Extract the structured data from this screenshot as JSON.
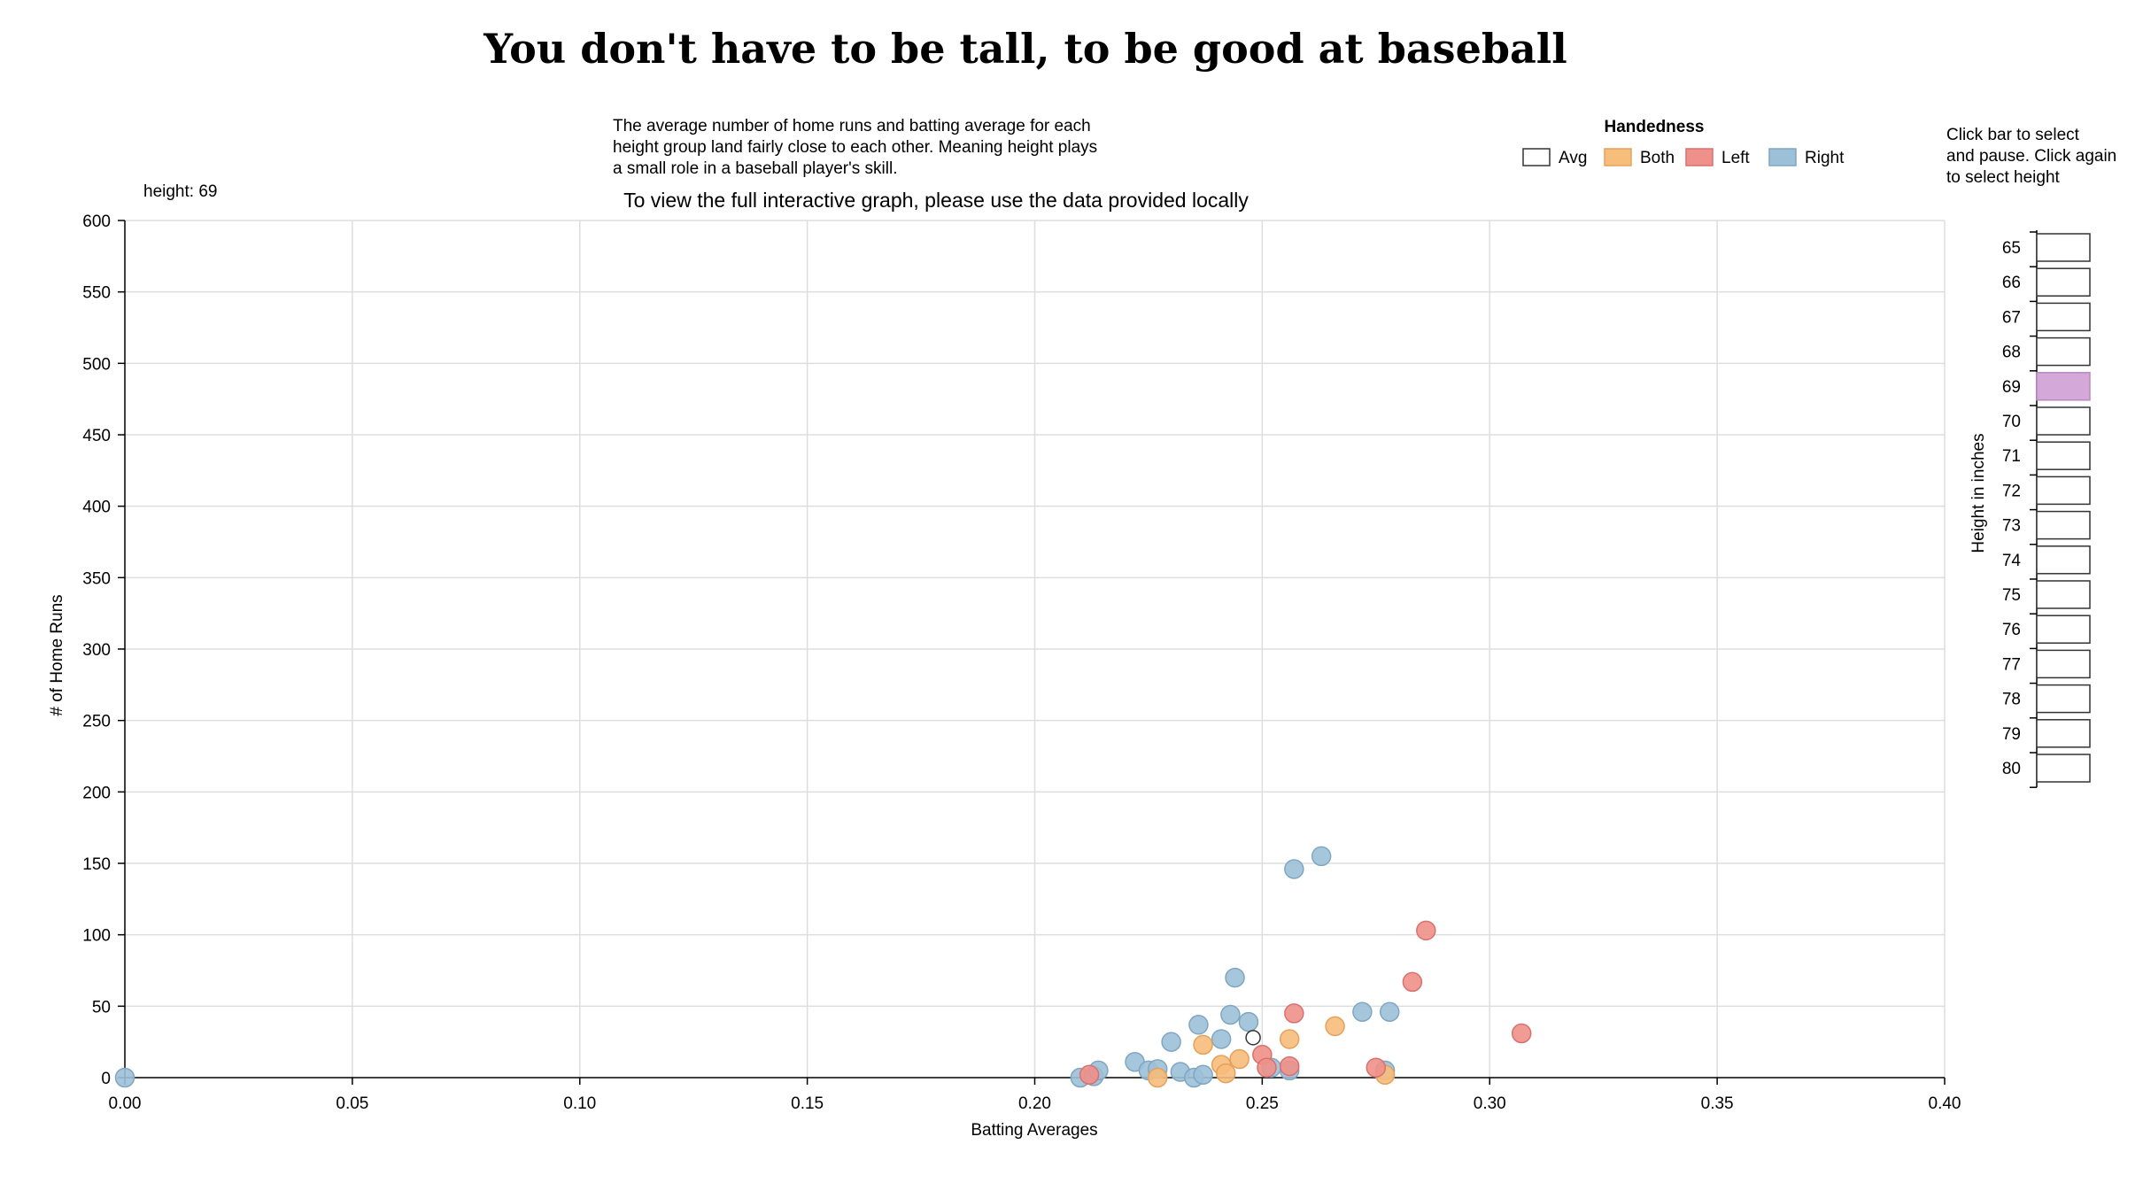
{
  "title": "You don't have to be tall, to be good at baseball",
  "description_lines": [
    "The average number of home runs and batting average for each",
    "height group land fairly close to each other. Meaning height plays",
    "a small role in a baseball player's skill."
  ],
  "notice": "To view the full interactive graph, please use the data provided locally",
  "height_readout": "height: 69",
  "instructions_lines": [
    "Click bar to select",
    "and pause. Click again",
    "to select height"
  ],
  "legend": {
    "title": "Handedness",
    "items": [
      {
        "label": "Avg",
        "color": "#ffffff",
        "stroke": "#333333"
      },
      {
        "label": "Both",
        "color": "#f7bd7b",
        "stroke": "#e5a05a"
      },
      {
        "label": "Left",
        "color": "#f0908a",
        "stroke": "#d97070"
      },
      {
        "label": "Right",
        "color": "#9cc0d8",
        "stroke": "#7fa6c2"
      }
    ]
  },
  "height_selector": {
    "axis_label": "Height in inches",
    "heights": [
      65,
      66,
      67,
      68,
      69,
      70,
      71,
      72,
      73,
      74,
      75,
      76,
      77,
      78,
      79,
      80
    ],
    "selected": 69,
    "selected_color": "#d4a8d8"
  },
  "chart_data": {
    "type": "scatter",
    "xlabel": "Batting Averages",
    "ylabel": "# of Home Runs",
    "xlim": [
      0,
      0.4
    ],
    "ylim": [
      0,
      600
    ],
    "xticks": [
      "0.00",
      "0.05",
      "0.10",
      "0.15",
      "0.20",
      "0.25",
      "0.30",
      "0.35",
      "0.40"
    ],
    "yticks": [
      "0",
      "50",
      "100",
      "150",
      "200",
      "250",
      "300",
      "350",
      "400",
      "450",
      "500",
      "550",
      "600"
    ],
    "grid": true,
    "series": [
      {
        "name": "Right",
        "points": [
          [
            0.0,
            0
          ],
          [
            0.21,
            0
          ],
          [
            0.213,
            1
          ],
          [
            0.214,
            5
          ],
          [
            0.222,
            11
          ],
          [
            0.225,
            5
          ],
          [
            0.227,
            6
          ],
          [
            0.23,
            25
          ],
          [
            0.232,
            4
          ],
          [
            0.235,
            0
          ],
          [
            0.236,
            37
          ],
          [
            0.237,
            2
          ],
          [
            0.241,
            27
          ],
          [
            0.243,
            44
          ],
          [
            0.244,
            70
          ],
          [
            0.247,
            39
          ],
          [
            0.252,
            7
          ],
          [
            0.256,
            5
          ],
          [
            0.257,
            146
          ],
          [
            0.263,
            155
          ],
          [
            0.272,
            46
          ],
          [
            0.277,
            5
          ],
          [
            0.278,
            46
          ]
        ]
      },
      {
        "name": "Both",
        "points": [
          [
            0.227,
            0
          ],
          [
            0.237,
            23
          ],
          [
            0.241,
            9
          ],
          [
            0.242,
            3
          ],
          [
            0.245,
            13
          ],
          [
            0.256,
            27
          ],
          [
            0.266,
            36
          ],
          [
            0.277,
            2
          ]
        ]
      },
      {
        "name": "Left",
        "points": [
          [
            0.212,
            2
          ],
          [
            0.25,
            16
          ],
          [
            0.251,
            7
          ],
          [
            0.256,
            8
          ],
          [
            0.257,
            45
          ],
          [
            0.275,
            7
          ],
          [
            0.283,
            67
          ],
          [
            0.286,
            103
          ],
          [
            0.307,
            31
          ]
        ]
      },
      {
        "name": "Avg",
        "points": [
          [
            0.248,
            28
          ]
        ]
      }
    ]
  }
}
